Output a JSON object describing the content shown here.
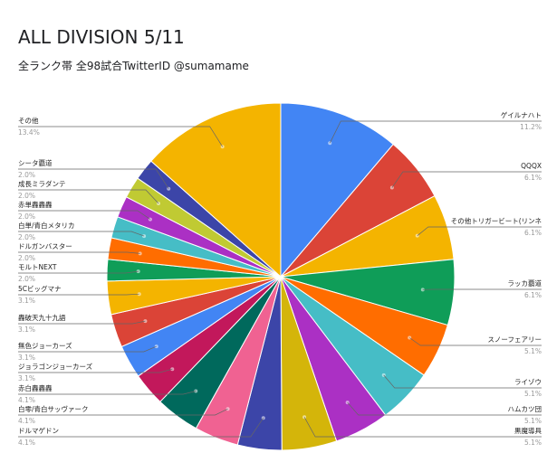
{
  "chart_data": {
    "type": "pie",
    "title": "ALL DIVISION 5/11",
    "subtitle": "全ランク帯 全98試合TwitterID @sumamame",
    "slices": [
      {
        "label": "ゲイルナハト",
        "value": 11.2,
        "pct_label": "11.2%",
        "color": "#4285f4"
      },
      {
        "label": "QQQX",
        "value": 6.1,
        "pct_label": "6.1%",
        "color": "#db4437"
      },
      {
        "label": "その他トリガービート(リンネ",
        "value": 6.1,
        "pct_label": "6.1%",
        "color": "#f4b400"
      },
      {
        "label": "ラッカ覇道",
        "value": 6.1,
        "pct_label": "6.1%",
        "color": "#0f9d58"
      },
      {
        "label": "スノーフェアリー",
        "value": 5.1,
        "pct_label": "5.1%",
        "color": "#ff6d00"
      },
      {
        "label": "ライゾウ",
        "value": 5.1,
        "pct_label": "5.1%",
        "color": "#46bdc6"
      },
      {
        "label": "ハムカツ団",
        "value": 5.1,
        "pct_label": "5.1%",
        "color": "#ab30c4"
      },
      {
        "label": "黒魔導具",
        "value": 5.1,
        "pct_label": "5.1%",
        "color": "#d4b50a"
      },
      {
        "label": "ドルマゲドン",
        "value": 4.1,
        "pct_label": "4.1%",
        "color": "#3c45a8"
      },
      {
        "label": "白零/青白サッヴァーク",
        "value": 4.1,
        "pct_label": "4.1%",
        "color": "#f06292"
      },
      {
        "label": "赤白轟轟轟",
        "value": 4.1,
        "pct_label": "4.1%",
        "color": "#00695c"
      },
      {
        "label": "ジョラゴンジョーカーズ",
        "value": 3.1,
        "pct_label": "3.1%",
        "color": "#c2185b"
      },
      {
        "label": "無色ジョーカーズ",
        "value": 3.1,
        "pct_label": "3.1%",
        "color": "#4285f4"
      },
      {
        "label": "轟破天九十九語",
        "value": 3.1,
        "pct_label": "3.1%",
        "color": "#db4437"
      },
      {
        "label": "5Cビッグマナ",
        "value": 3.1,
        "pct_label": "3.1%",
        "color": "#f4b400"
      },
      {
        "label": "モルトNEXT",
        "value": 2.0,
        "pct_label": "2.0%",
        "color": "#0f9d58"
      },
      {
        "label": "ドルガンバスター",
        "value": 2.0,
        "pct_label": "2.0%",
        "color": "#ff6d00"
      },
      {
        "label": "白単/青白メタリカ",
        "value": 2.0,
        "pct_label": "2.0%",
        "color": "#46bdc6"
      },
      {
        "label": "赤単轟轟轟",
        "value": 2.0,
        "pct_label": "2.0%",
        "color": "#ab30c4"
      },
      {
        "label": "成長ミラダンテ",
        "value": 2.0,
        "pct_label": "2.0%",
        "color": "#c0ca33"
      },
      {
        "label": "シータ覇道",
        "value": 2.0,
        "pct_label": "2.0%",
        "color": "#3c45a8"
      },
      {
        "label": "その他",
        "value": 13.4,
        "pct_label": "13.4%",
        "color": "#f4b400"
      }
    ]
  }
}
